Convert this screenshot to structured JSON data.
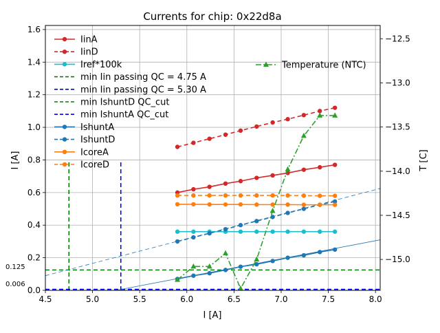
{
  "chart_data": {
    "type": "line",
    "title": "Currents for chip: 0x22d8a",
    "xlabel": "I [A]",
    "ylabel": "I [A]",
    "y2label": "T [C]",
    "xlim": [
      4.5,
      8.05
    ],
    "ylim": [
      0.0,
      1.625
    ],
    "y2lim": [
      -15.35,
      -12.35
    ],
    "x_ticks": [
      "4.5",
      "5.0",
      "5.5",
      "6.0",
      "6.5",
      "7.0",
      "7.5",
      "8.0"
    ],
    "y_ticks": [
      "0.0",
      "0.2",
      "0.4",
      "0.6",
      "0.8",
      "1.0",
      "1.2",
      "1.4",
      "1.6"
    ],
    "y2_ticks": [
      "−15.0",
      "−14.5",
      "−14.0",
      "−13.5",
      "−13.0",
      "−12.5"
    ],
    "y2_tick_values": [
      -15.0,
      -14.5,
      -14.0,
      -13.5,
      -13.0,
      -12.5
    ],
    "grid": true,
    "x": [
      5.9,
      6.07,
      6.24,
      6.41,
      6.57,
      6.74,
      6.91,
      7.07,
      7.24,
      7.41,
      7.57
    ],
    "series": [
      {
        "name": "IinA",
        "color": "#d62728",
        "dash": "solid",
        "values": [
          0.6,
          0.62,
          0.635,
          0.655,
          0.67,
          0.69,
          0.705,
          0.72,
          0.74,
          0.755,
          0.77
        ]
      },
      {
        "name": "IinD",
        "color": "#d62728",
        "dash": "dashed",
        "values": [
          0.88,
          0.905,
          0.93,
          0.955,
          0.98,
          1.005,
          1.03,
          1.05,
          1.075,
          1.1,
          1.12
        ]
      },
      {
        "name": "Iref*100k",
        "color": "#17becf",
        "dash": "solid",
        "values": [
          0.36,
          0.36,
          0.36,
          0.36,
          0.36,
          0.36,
          0.36,
          0.36,
          0.36,
          0.36,
          0.36
        ]
      },
      {
        "name": "IshuntA",
        "color": "#1f77b4",
        "dash": "solid",
        "values": [
          0.07,
          0.09,
          0.105,
          0.125,
          0.145,
          0.16,
          0.18,
          0.2,
          0.215,
          0.235,
          0.25
        ]
      },
      {
        "name": "IshuntD",
        "color": "#1f77b4",
        "dash": "dashed",
        "values": [
          0.3,
          0.325,
          0.35,
          0.375,
          0.4,
          0.425,
          0.45,
          0.475,
          0.5,
          0.525,
          0.545
        ]
      },
      {
        "name": "IcoreA",
        "color": "#ff7f0e",
        "dash": "solid",
        "values": [
          0.528,
          0.528,
          0.527,
          0.527,
          0.527,
          0.526,
          0.526,
          0.526,
          0.525,
          0.525,
          0.525
        ]
      },
      {
        "name": "IcoreD",
        "color": "#ff7f0e",
        "dash": "dashed",
        "values": [
          0.582,
          0.582,
          0.582,
          0.582,
          0.582,
          0.582,
          0.582,
          0.582,
          0.581,
          0.58,
          0.58
        ]
      }
    ],
    "temperature_series": {
      "name": "Temperature (NTC)",
      "color": "#2ca02c",
      "dash": "dashdot",
      "values": [
        -15.23,
        -15.08,
        -15.08,
        -14.93,
        -15.33,
        -15.0,
        -14.45,
        -13.98,
        -13.6,
        -13.37,
        -13.37
      ]
    },
    "fit_lines": [
      {
        "name": "IshuntA fit",
        "color": "#1f77b4",
        "dash": "solid",
        "points": [
          [
            5.25,
            0.0
          ],
          [
            8.05,
            0.31
          ]
        ]
      },
      {
        "name": "IshuntD fit",
        "color": "#1f77b4",
        "dash": "dashed",
        "points": [
          [
            4.5,
            0.09
          ],
          [
            8.05,
            0.625
          ]
        ]
      }
    ],
    "threshold_lines": [
      {
        "name": "min Iin passing QC = 4.75 A",
        "color": "#008000",
        "orientation": "vertical",
        "x": 4.75,
        "ymax": 0.8
      },
      {
        "name": "min Iin passing QC = 5.30 A",
        "color": "#0000ff",
        "orientation": "vertical",
        "x": 5.3,
        "ymax": 0.8
      },
      {
        "name": "min IshuntD QC_cut",
        "color": "#008000",
        "orientation": "horizontal",
        "y": 0.125
      },
      {
        "name": "min IshuntA QC_cut",
        "color": "#0000ff",
        "orientation": "horizontal",
        "y": 0.006
      }
    ],
    "annotations": [
      {
        "text": "0.125",
        "y": 0.125
      },
      {
        "text": "0.006",
        "y": 0.006
      }
    ],
    "legend_left": [
      {
        "label": "IinA",
        "color": "#d62728",
        "style": "solid-marker"
      },
      {
        "label": "IinD",
        "color": "#d62728",
        "style": "dashed-marker"
      },
      {
        "label": "Iref*100k",
        "color": "#17becf",
        "style": "solid-marker"
      },
      {
        "label": "min Iin passing QC = 4.75 A",
        "color": "#008000",
        "style": "dashed"
      },
      {
        "label": "min Iin passing QC = 5.30 A",
        "color": "#0000ff",
        "style": "dashed"
      },
      {
        "label": "min IshuntD QC_cut",
        "color": "#008000",
        "style": "dashed"
      },
      {
        "label": "min IshuntA QC_cut",
        "color": "#0000ff",
        "style": "dashed"
      },
      {
        "label": "IshuntA",
        "color": "#1f77b4",
        "style": "solid-marker"
      },
      {
        "label": "IshuntD",
        "color": "#1f77b4",
        "style": "dashed-marker"
      },
      {
        "label": "IcoreA",
        "color": "#ff7f0e",
        "style": "solid-marker"
      },
      {
        "label": "IcoreD",
        "color": "#ff7f0e",
        "style": "dashed-marker"
      }
    ],
    "legend_right": [
      {
        "label": "Temperature (NTC)",
        "color": "#2ca02c",
        "style": "dashdot-triangle"
      }
    ]
  }
}
